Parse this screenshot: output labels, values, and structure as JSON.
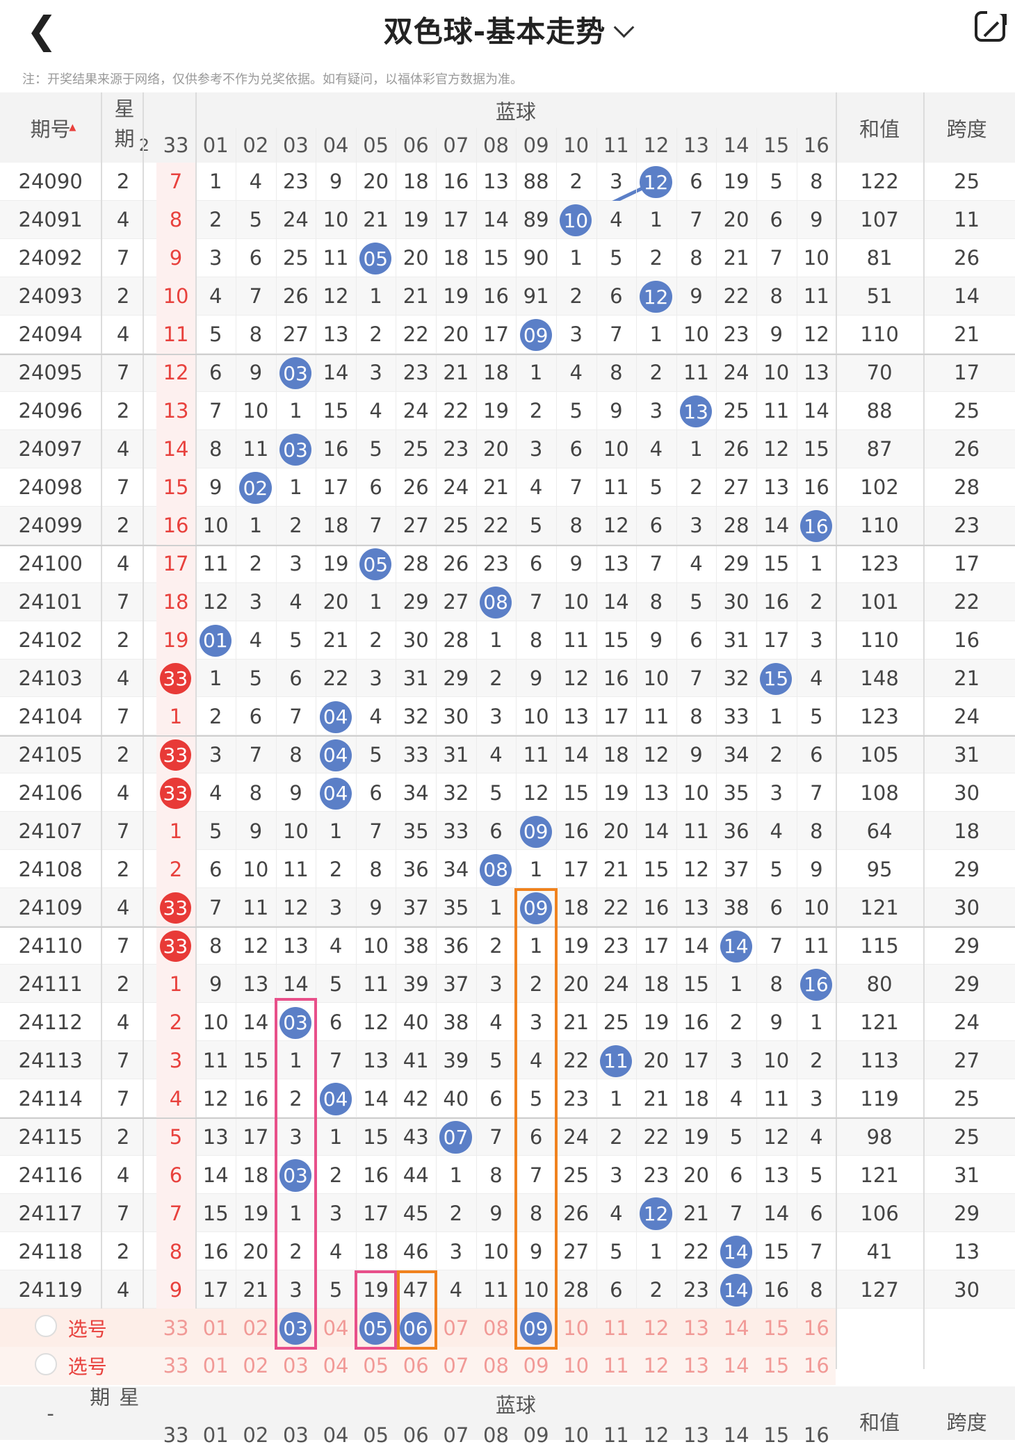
{
  "header": {
    "title": "双色球-基本走势",
    "back_icon": "chevron-left-icon",
    "share_icon": "external-share-icon"
  },
  "notice": "注：开奖结果来源于网络，仅供参考不作为兑奖依据。如有疑问，以福体彩官方数据为准。",
  "table": {
    "col_issue": "期号",
    "col_weekday": "星期",
    "col_blue_group": "蓝球",
    "col_sum": "和值",
    "col_span": "跨度",
    "prev_col_label": "33",
    "prev_col_partial": "2",
    "blue_columns": [
      "01",
      "02",
      "03",
      "04",
      "05",
      "06",
      "07",
      "08",
      "09",
      "10",
      "11",
      "12",
      "13",
      "14",
      "15",
      "16"
    ],
    "rows": [
      {
        "issue": "24090",
        "weekday": "2",
        "prev": "7",
        "prev_ball": false,
        "blue": 12,
        "cells": [
          "1",
          "4",
          "23",
          "9",
          "20",
          "18",
          "16",
          "13",
          "88",
          "2",
          "3",
          "12",
          "6",
          "19",
          "5",
          "8"
        ],
        "sum": "122",
        "span": "25"
      },
      {
        "issue": "24091",
        "weekday": "4",
        "prev": "8",
        "prev_ball": false,
        "blue": 10,
        "cells": [
          "2",
          "5",
          "24",
          "10",
          "21",
          "19",
          "17",
          "14",
          "89",
          "10",
          "4",
          "1",
          "7",
          "20",
          "6",
          "9"
        ],
        "sum": "107",
        "span": "11"
      },
      {
        "issue": "24092",
        "weekday": "7",
        "prev": "9",
        "prev_ball": false,
        "blue": 5,
        "cells": [
          "3",
          "6",
          "25",
          "11",
          "05",
          "20",
          "18",
          "15",
          "90",
          "1",
          "5",
          "2",
          "8",
          "21",
          "7",
          "10"
        ],
        "sum": "81",
        "span": "26"
      },
      {
        "issue": "24093",
        "weekday": "2",
        "prev": "10",
        "prev_ball": false,
        "blue": 12,
        "cells": [
          "4",
          "7",
          "26",
          "12",
          "1",
          "21",
          "19",
          "16",
          "91",
          "2",
          "6",
          "12",
          "9",
          "22",
          "8",
          "11"
        ],
        "sum": "51",
        "span": "14"
      },
      {
        "issue": "24094",
        "weekday": "4",
        "prev": "11",
        "prev_ball": false,
        "blue": 9,
        "cells": [
          "5",
          "8",
          "27",
          "13",
          "2",
          "22",
          "20",
          "17",
          "09",
          "3",
          "7",
          "1",
          "10",
          "23",
          "9",
          "12"
        ],
        "sum": "110",
        "span": "21"
      },
      {
        "issue": "24095",
        "weekday": "7",
        "prev": "12",
        "prev_ball": false,
        "blue": 3,
        "cells": [
          "6",
          "9",
          "03",
          "14",
          "3",
          "23",
          "21",
          "18",
          "1",
          "4",
          "8",
          "2",
          "11",
          "24",
          "10",
          "13"
        ],
        "sum": "70",
        "span": "17"
      },
      {
        "issue": "24096",
        "weekday": "2",
        "prev": "13",
        "prev_ball": false,
        "blue": 13,
        "cells": [
          "7",
          "10",
          "1",
          "15",
          "4",
          "24",
          "22",
          "19",
          "2",
          "5",
          "9",
          "3",
          "13",
          "25",
          "11",
          "14"
        ],
        "sum": "88",
        "span": "25"
      },
      {
        "issue": "24097",
        "weekday": "4",
        "prev": "14",
        "prev_ball": false,
        "blue": 3,
        "cells": [
          "8",
          "11",
          "03",
          "16",
          "5",
          "25",
          "23",
          "20",
          "3",
          "6",
          "10",
          "4",
          "1",
          "26",
          "12",
          "15"
        ],
        "sum": "87",
        "span": "26"
      },
      {
        "issue": "24098",
        "weekday": "7",
        "prev": "15",
        "prev_ball": false,
        "blue": 2,
        "cells": [
          "9",
          "02",
          "1",
          "17",
          "6",
          "26",
          "24",
          "21",
          "4",
          "7",
          "11",
          "5",
          "2",
          "27",
          "13",
          "16"
        ],
        "sum": "102",
        "span": "28"
      },
      {
        "issue": "24099",
        "weekday": "2",
        "prev": "16",
        "prev_ball": false,
        "blue": 16,
        "cells": [
          "10",
          "1",
          "2",
          "18",
          "7",
          "27",
          "25",
          "22",
          "5",
          "8",
          "12",
          "6",
          "3",
          "28",
          "14",
          "16"
        ],
        "sum": "110",
        "span": "23"
      },
      {
        "issue": "24100",
        "weekday": "4",
        "prev": "17",
        "prev_ball": false,
        "blue": 5,
        "cells": [
          "11",
          "2",
          "3",
          "19",
          "05",
          "28",
          "26",
          "23",
          "6",
          "9",
          "13",
          "7",
          "4",
          "29",
          "15",
          "1"
        ],
        "sum": "123",
        "span": "17"
      },
      {
        "issue": "24101",
        "weekday": "7",
        "prev": "18",
        "prev_ball": false,
        "blue": 8,
        "cells": [
          "12",
          "3",
          "4",
          "20",
          "1",
          "29",
          "27",
          "08",
          "7",
          "10",
          "14",
          "8",
          "5",
          "30",
          "16",
          "2"
        ],
        "sum": "101",
        "span": "22"
      },
      {
        "issue": "24102",
        "weekday": "2",
        "prev": "19",
        "prev_ball": false,
        "blue": 1,
        "cells": [
          "01",
          "4",
          "5",
          "21",
          "2",
          "30",
          "28",
          "1",
          "8",
          "11",
          "15",
          "9",
          "6",
          "31",
          "17",
          "3"
        ],
        "sum": "110",
        "span": "16"
      },
      {
        "issue": "24103",
        "weekday": "4",
        "prev": "33",
        "prev_ball": true,
        "blue": 15,
        "cells": [
          "1",
          "5",
          "6",
          "22",
          "3",
          "31",
          "29",
          "2",
          "9",
          "12",
          "16",
          "10",
          "7",
          "32",
          "15",
          "4"
        ],
        "sum": "148",
        "span": "21"
      },
      {
        "issue": "24104",
        "weekday": "7",
        "prev": "1",
        "prev_ball": false,
        "blue": 4,
        "cells": [
          "2",
          "6",
          "7",
          "04",
          "4",
          "32",
          "30",
          "3",
          "10",
          "13",
          "17",
          "11",
          "8",
          "33",
          "1",
          "5"
        ],
        "sum": "123",
        "span": "24"
      },
      {
        "issue": "24105",
        "weekday": "2",
        "prev": "33",
        "prev_ball": true,
        "blue": 4,
        "cells": [
          "3",
          "7",
          "8",
          "04",
          "5",
          "33",
          "31",
          "4",
          "11",
          "14",
          "18",
          "12",
          "9",
          "34",
          "2",
          "6"
        ],
        "sum": "105",
        "span": "31"
      },
      {
        "issue": "24106",
        "weekday": "4",
        "prev": "33",
        "prev_ball": true,
        "blue": 4,
        "cells": [
          "4",
          "8",
          "9",
          "04",
          "6",
          "34",
          "32",
          "5",
          "12",
          "15",
          "19",
          "13",
          "10",
          "35",
          "3",
          "7"
        ],
        "sum": "108",
        "span": "30"
      },
      {
        "issue": "24107",
        "weekday": "7",
        "prev": "1",
        "prev_ball": false,
        "blue": 9,
        "cells": [
          "5",
          "9",
          "10",
          "1",
          "7",
          "35",
          "33",
          "6",
          "09",
          "16",
          "20",
          "14",
          "11",
          "36",
          "4",
          "8"
        ],
        "sum": "64",
        "span": "18"
      },
      {
        "issue": "24108",
        "weekday": "2",
        "prev": "2",
        "prev_ball": false,
        "blue": 8,
        "cells": [
          "6",
          "10",
          "11",
          "2",
          "8",
          "36",
          "34",
          "08",
          "1",
          "17",
          "21",
          "15",
          "12",
          "37",
          "5",
          "9"
        ],
        "sum": "95",
        "span": "29"
      },
      {
        "issue": "24109",
        "weekday": "4",
        "prev": "33",
        "prev_ball": true,
        "blue": 9,
        "cells": [
          "7",
          "11",
          "12",
          "3",
          "9",
          "37",
          "35",
          "1",
          "09",
          "18",
          "22",
          "16",
          "13",
          "38",
          "6",
          "10"
        ],
        "sum": "121",
        "span": "30"
      },
      {
        "issue": "24110",
        "weekday": "7",
        "prev": "33",
        "prev_ball": true,
        "blue": 14,
        "cells": [
          "8",
          "12",
          "13",
          "4",
          "10",
          "38",
          "36",
          "2",
          "1",
          "19",
          "23",
          "17",
          "14",
          "14",
          "7",
          "11"
        ],
        "sum": "115",
        "span": "29"
      },
      {
        "issue": "24111",
        "weekday": "2",
        "prev": "1",
        "prev_ball": false,
        "blue": 16,
        "cells": [
          "9",
          "13",
          "14",
          "5",
          "11",
          "39",
          "37",
          "3",
          "2",
          "20",
          "24",
          "18",
          "15",
          "1",
          "8",
          "16"
        ],
        "sum": "80",
        "span": "29"
      },
      {
        "issue": "24112",
        "weekday": "4",
        "prev": "2",
        "prev_ball": false,
        "blue": 3,
        "cells": [
          "10",
          "14",
          "03",
          "6",
          "12",
          "40",
          "38",
          "4",
          "3",
          "21",
          "25",
          "19",
          "16",
          "2",
          "9",
          "1"
        ],
        "sum": "121",
        "span": "24"
      },
      {
        "issue": "24113",
        "weekday": "7",
        "prev": "3",
        "prev_ball": false,
        "blue": 11,
        "cells": [
          "11",
          "15",
          "1",
          "7",
          "13",
          "41",
          "39",
          "5",
          "4",
          "22",
          "11",
          "20",
          "17",
          "3",
          "10",
          "2"
        ],
        "sum": "113",
        "span": "27"
      },
      {
        "issue": "24114",
        "weekday": "7",
        "prev": "4",
        "prev_ball": false,
        "blue": 4,
        "cells": [
          "12",
          "16",
          "2",
          "04",
          "14",
          "42",
          "40",
          "6",
          "5",
          "23",
          "1",
          "21",
          "18",
          "4",
          "11",
          "3"
        ],
        "sum": "119",
        "span": "25"
      },
      {
        "issue": "24115",
        "weekday": "2",
        "prev": "5",
        "prev_ball": false,
        "blue": 7,
        "cells": [
          "13",
          "17",
          "3",
          "1",
          "15",
          "43",
          "07",
          "7",
          "6",
          "24",
          "2",
          "22",
          "19",
          "5",
          "12",
          "4"
        ],
        "sum": "98",
        "span": "25"
      },
      {
        "issue": "24116",
        "weekday": "4",
        "prev": "6",
        "prev_ball": false,
        "blue": 3,
        "cells": [
          "14",
          "18",
          "03",
          "2",
          "16",
          "44",
          "1",
          "8",
          "7",
          "25",
          "3",
          "23",
          "20",
          "6",
          "13",
          "5"
        ],
        "sum": "121",
        "span": "31"
      },
      {
        "issue": "24117",
        "weekday": "7",
        "prev": "7",
        "prev_ball": false,
        "blue": 12,
        "cells": [
          "15",
          "19",
          "1",
          "3",
          "17",
          "45",
          "2",
          "9",
          "8",
          "26",
          "4",
          "12",
          "21",
          "7",
          "14",
          "6"
        ],
        "sum": "106",
        "span": "29"
      },
      {
        "issue": "24118",
        "weekday": "2",
        "prev": "8",
        "prev_ball": false,
        "blue": 14,
        "cells": [
          "16",
          "20",
          "2",
          "4",
          "18",
          "46",
          "3",
          "10",
          "9",
          "27",
          "5",
          "1",
          "22",
          "14",
          "15",
          "7"
        ],
        "sum": "41",
        "span": "13"
      },
      {
        "issue": "24119",
        "weekday": "4",
        "prev": "9",
        "prev_ball": false,
        "blue": 14,
        "cells": [
          "17",
          "21",
          "3",
          "5",
          "19",
          "47",
          "4",
          "11",
          "10",
          "28",
          "6",
          "2",
          "23",
          "14",
          "16",
          "8"
        ],
        "sum": "127",
        "span": "30"
      }
    ],
    "pick_rows": [
      {
        "label": "选号",
        "prev": "33",
        "selected": [
          3,
          5,
          6,
          9
        ]
      },
      {
        "label": "选号",
        "prev": "33",
        "selected": []
      }
    ]
  },
  "colors": {
    "blue_ball": "#5b7fc7",
    "red_ball": "#e83a37",
    "pink_box": "#e8508a",
    "orange_box": "#f0821e",
    "pick_bg": "#fdeee8"
  }
}
